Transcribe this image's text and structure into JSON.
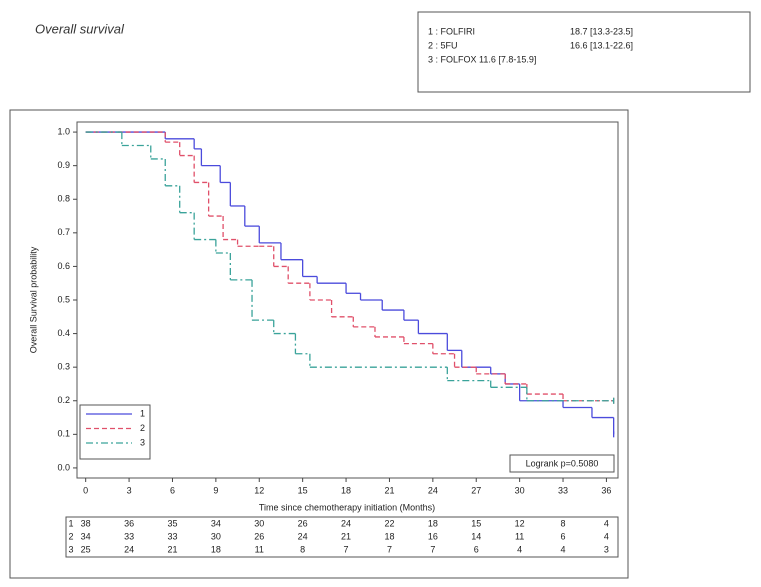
{
  "chart_data": {
    "type": "km",
    "title": "Overall survival",
    "median_survival": [
      {
        "label": "1 : FOLFIRI",
        "value": "18.7 [13.3-23.5]"
      },
      {
        "label": "2 : 5FU",
        "value": "16.6 [13.1-22.6]"
      },
      {
        "label": "3 : FOLFOX 11.6 [7.8-15.9]"
      }
    ],
    "x_label": "Time since chemotherapy initiation (Months)",
    "y_label": "Overall Survival probability",
    "annotation": "Logrank p=0.5080",
    "xlim": [
      -0.6,
      36.8
    ],
    "ylim": [
      -0.03,
      1.03
    ],
    "xticks": [
      0,
      3,
      6,
      9,
      12,
      15,
      18,
      21,
      24,
      27,
      30,
      33,
      36
    ],
    "yticks": [
      {
        "value": 0,
        "label": "0.0"
      },
      0.1,
      0.2,
      0.3,
      0.4,
      0.5,
      0.6,
      0.7,
      0.8,
      0.9,
      {
        "value": 1,
        "label": "1.0"
      }
    ],
    "series": [
      {
        "name": "1",
        "color": "#4b4bdc",
        "dash": "none",
        "x": [
          0,
          5.5,
          7.5,
          8,
          9.3,
          10,
          11,
          12,
          13.5,
          15,
          16,
          18,
          19,
          20.5,
          22,
          23,
          25,
          26,
          28,
          29,
          30,
          33,
          35,
          36.5
        ],
        "values": [
          1,
          0.98,
          0.95,
          0.9,
          0.85,
          0.78,
          0.72,
          0.67,
          0.62,
          0.57,
          0.55,
          0.52,
          0.5,
          0.47,
          0.44,
          0.4,
          0.35,
          0.3,
          0.28,
          0.25,
          0.2,
          0.18,
          0.15,
          0.1
        ]
      },
      {
        "name": "2",
        "color": "#e0506a",
        "dash": "5,3",
        "x": [
          0,
          5.5,
          6.5,
          7.5,
          8.5,
          9.5,
          10.5,
          12,
          13,
          14,
          15.5,
          17,
          18.5,
          20,
          22,
          24,
          25.5,
          27,
          29,
          30.5,
          33,
          36.5
        ],
        "values": [
          1,
          0.97,
          0.93,
          0.85,
          0.75,
          0.68,
          0.66,
          0.66,
          0.6,
          0.55,
          0.5,
          0.45,
          0.42,
          0.39,
          0.37,
          0.34,
          0.3,
          0.28,
          0.25,
          0.22,
          0.2,
          0.2
        ]
      },
      {
        "name": "3",
        "color": "#3aa39a",
        "dash": "7,3,2,3",
        "x": [
          0,
          2.5,
          4.5,
          5.5,
          6.5,
          7.5,
          9,
          10,
          11.5,
          13,
          14.5,
          15.5,
          25,
          28,
          30.5,
          36.5
        ],
        "values": [
          1,
          0.96,
          0.92,
          0.84,
          0.76,
          0.68,
          0.64,
          0.56,
          0.44,
          0.4,
          0.34,
          0.3,
          0.26,
          0.24,
          0.2,
          0.2
        ]
      }
    ],
    "at_risk": [
      {
        "label": "1",
        "values": [
          "38",
          "36",
          "35",
          "34",
          "30",
          "26",
          "24",
          "22",
          "18",
          "15",
          "12",
          "8",
          "4"
        ]
      },
      {
        "label": "2",
        "values": [
          "34",
          "33",
          "33",
          "30",
          "26",
          "24",
          "21",
          "18",
          "16",
          "14",
          "11",
          "6",
          "4"
        ]
      },
      {
        "label": "3",
        "values": [
          "25",
          "24",
          "21",
          "18",
          "11",
          "8",
          "7",
          "7",
          "7",
          "6",
          "4",
          "4",
          "3"
        ]
      }
    ]
  }
}
